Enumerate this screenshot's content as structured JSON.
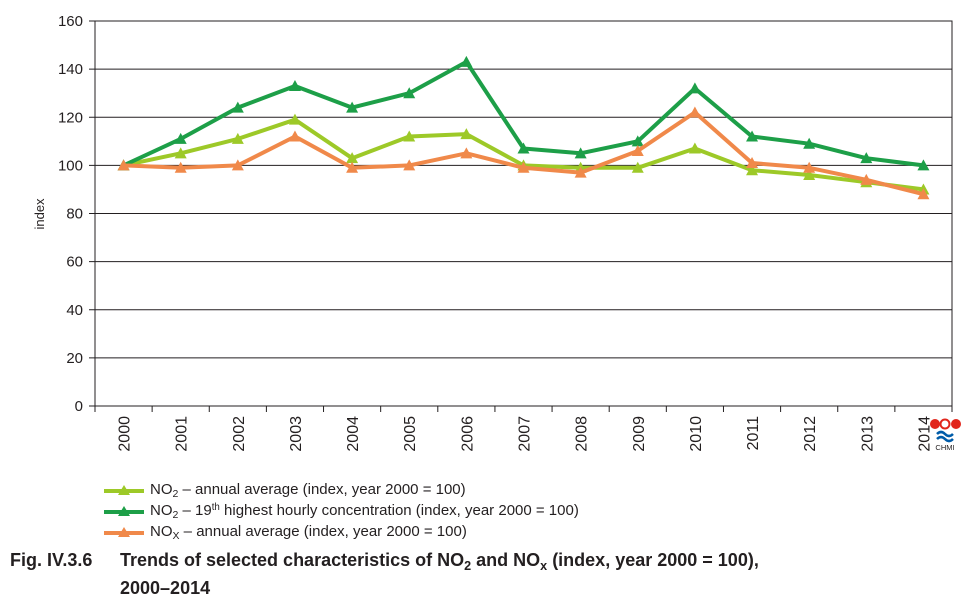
{
  "chart_data": {
    "type": "line",
    "ylabel": "index",
    "xlabel": "",
    "ylim": [
      0,
      160
    ],
    "yticks": [
      0,
      20,
      40,
      60,
      80,
      100,
      120,
      140,
      160
    ],
    "grid": true,
    "legend_position": "bottom-left",
    "categories": [
      "2000",
      "2001",
      "2002",
      "2003",
      "2004",
      "2005",
      "2006",
      "2007",
      "2008",
      "2009",
      "2010",
      "2011",
      "2012",
      "2013",
      "2014"
    ],
    "series": [
      {
        "name_parts": [
          "NO",
          "2",
          " – ",
          "",
          "annual average (index, year 2000 = 100)"
        ],
        "color": "#9dc928",
        "values": [
          100,
          105,
          111,
          119,
          103,
          112,
          113,
          100,
          99,
          99,
          107,
          98,
          96,
          93,
          90
        ]
      },
      {
        "name_parts": [
          "NO",
          "2",
          " – 19",
          "th",
          " highest hourly concentration (index, year 2000 = 100)"
        ],
        "color": "#1d9f48",
        "values": [
          100,
          111,
          124,
          133,
          124,
          130,
          143,
          107,
          105,
          110,
          132,
          112,
          109,
          103,
          100
        ]
      },
      {
        "name_parts": [
          "NO",
          "X",
          " – ",
          "",
          "annual average (index, year 2000 = 100)"
        ],
        "color": "#f0894a",
        "values": [
          100,
          99,
          100,
          112,
          99,
          100,
          105,
          99,
          97,
          106,
          122,
          101,
          99,
          94,
          88
        ]
      }
    ]
  },
  "caption": {
    "number": "Fig. IV.3.6",
    "text_a": "Trends of selected characteristics of NO",
    "sub_a": "2",
    "text_b": " and NO",
    "sub_b": "x",
    "text_c": " (index, year 2000 = 100),",
    "line2": "2000–2014"
  },
  "logo": {
    "text": "CHMI",
    "colors": [
      "#e1261c",
      "#005ca9"
    ]
  }
}
